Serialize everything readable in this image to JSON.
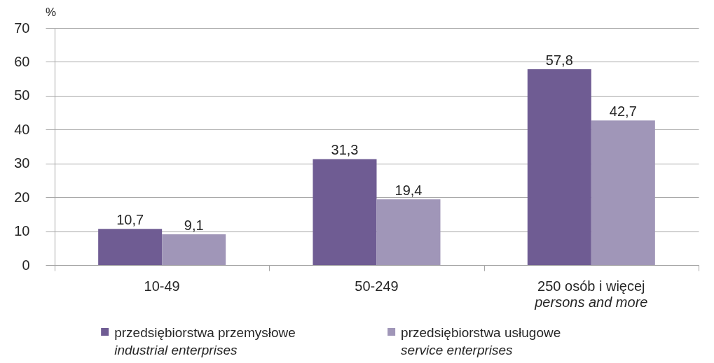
{
  "chart_data": {
    "type": "bar",
    "ylabel": "%",
    "categories": [
      "10-49",
      "50-249",
      "250 osób i więcej\npersons and more"
    ],
    "series": [
      {
        "name": "przedsiębiorstwa przemysłowe\nindustrial enterprises",
        "color": "#6f5c93",
        "values": [
          10.7,
          31.3,
          57.8
        ],
        "value_labels": [
          "10,7",
          "31,3",
          "57,8"
        ]
      },
      {
        "name": "przedsiębiorstwa usługowe\nservice enterprises",
        "color": "#a096b8",
        "values": [
          9.1,
          19.4,
          42.7
        ],
        "value_labels": [
          "9,1",
          "19,4",
          "42,7"
        ]
      }
    ],
    "ylim": [
      0,
      70
    ],
    "yticks": [
      0,
      10,
      20,
      30,
      40,
      50,
      60,
      70
    ],
    "grid": "y",
    "legend": "bottom"
  }
}
